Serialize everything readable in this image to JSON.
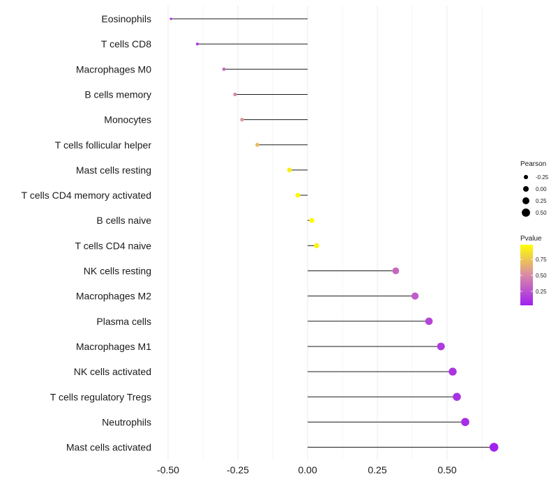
{
  "chart_data": {
    "type": "lollipop",
    "title": "",
    "xlabel": "",
    "ylabel": "",
    "xlim": [
      -0.52,
      0.68
    ],
    "x_ticks": [
      {
        "value": -0.5,
        "label": "-0.50"
      },
      {
        "value": -0.25,
        "label": "-0.25"
      },
      {
        "value": 0,
        "label": "0.00"
      },
      {
        "value": 0.25,
        "label": "0.25"
      },
      {
        "value": 0.5,
        "label": "0.50"
      }
    ],
    "grid": true,
    "points": [
      {
        "category": "Eosinophils",
        "pearson": -0.49,
        "pvalue": 0.08
      },
      {
        "category": "T cells CD8",
        "pearson": -0.395,
        "pvalue": 0.12
      },
      {
        "category": "Macrophages M0",
        "pearson": -0.3,
        "pvalue": 0.35
      },
      {
        "category": "B cells memory",
        "pearson": -0.26,
        "pvalue": 0.48
      },
      {
        "category": "Monocytes",
        "pearson": -0.235,
        "pvalue": 0.55
      },
      {
        "category": "T cells follicular helper",
        "pearson": -0.18,
        "pvalue": 0.7
      },
      {
        "category": "Mast cells resting",
        "pearson": -0.065,
        "pvalue": 0.9
      },
      {
        "category": "T cells CD4 memory activated",
        "pearson": -0.035,
        "pvalue": 0.95
      },
      {
        "category": "B cells naive",
        "pearson": 0.015,
        "pvalue": 0.97
      },
      {
        "category": "T cells CD4 naive",
        "pearson": 0.032,
        "pvalue": 0.93
      },
      {
        "category": "NK cells resting",
        "pearson": 0.316,
        "pvalue": 0.35
      },
      {
        "category": "Macrophages M2",
        "pearson": 0.385,
        "pvalue": 0.3
      },
      {
        "category": "Plasma cells",
        "pearson": 0.435,
        "pvalue": 0.2
      },
      {
        "category": "Macrophages M1",
        "pearson": 0.478,
        "pvalue": 0.15
      },
      {
        "category": "NK cells activated",
        "pearson": 0.52,
        "pvalue": 0.12
      },
      {
        "category": "T cells regulatory  Tregs ",
        "pearson": 0.535,
        "pvalue": 0.1
      },
      {
        "category": "Neutrophils",
        "pearson": 0.565,
        "pvalue": 0.09
      },
      {
        "category": "Mast cells activated",
        "pearson": 0.668,
        "pvalue": 0.04
      }
    ],
    "legend": {
      "size_title": "Pearson",
      "size_entries": [
        {
          "value": -0.25,
          "label": "-0.25"
        },
        {
          "value": 0,
          "label": "0.00"
        },
        {
          "value": 0.25,
          "label": "0.25"
        },
        {
          "value": 0.5,
          "label": "0.50"
        }
      ],
      "color_title": "Pvalue",
      "color_range": [
        0.03,
        0.98
      ],
      "color_ticks": [
        {
          "value": 0.75,
          "label": "0.75"
        },
        {
          "value": 0.5,
          "label": "0.50"
        },
        {
          "value": 0.25,
          "label": "0.25"
        }
      ],
      "color_low": "#a020f0",
      "color_mid": "#d98aa8",
      "color_high": "#ffff00"
    }
  }
}
